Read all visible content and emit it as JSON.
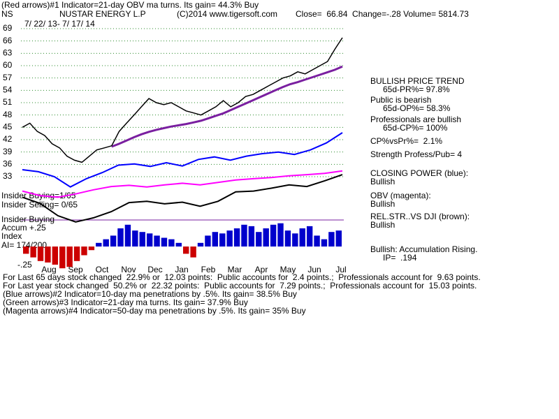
{
  "header": {
    "line1": "(Red arrows)#1 Indicator=21-day OBV ma turns. Its gain= 44.3% Buy",
    "symbol": "NS",
    "company": "NUSTAR ENERGY L.P",
    "copyright": "(C)2014 www.tigersoft.com",
    "quote": "Close=  66.84  Change=-.28 Volume= 5814.73"
  },
  "chart_data": {
    "type": "line",
    "date_range": "7/ 22/ 13- 7/ 17/ 14",
    "ylim": [
      33,
      69
    ],
    "yticks": [
      69,
      66,
      63,
      60,
      57,
      54,
      51,
      48,
      45,
      42,
      39,
      36,
      33
    ],
    "grid": true,
    "months": [
      "Aug",
      "Sep",
      "Oct",
      "Nov",
      "Dec",
      "Jan",
      "Feb",
      "Mar",
      "Apr",
      "May",
      "Jun",
      "Jul"
    ],
    "price": {
      "color": "#000000",
      "values": [
        45,
        46,
        44,
        43,
        41,
        40,
        38,
        37,
        36.5,
        38,
        39.5,
        40,
        40.5,
        44,
        46,
        48,
        50,
        52,
        51,
        50.5,
        51,
        50,
        49,
        48.5,
        48,
        49,
        50,
        51.5,
        50,
        51,
        52.5,
        53,
        54,
        55,
        56,
        57,
        57.5,
        58.5,
        58,
        59,
        60,
        61,
        64,
        66.8
      ]
    },
    "ma50": {
      "color": "#7a1fa0",
      "values": [
        null,
        null,
        null,
        null,
        null,
        null,
        null,
        null,
        null,
        null,
        null,
        null,
        40.3,
        41.0,
        41.8,
        42.6,
        43.3,
        43.9,
        44.4,
        44.8,
        45.2,
        45.5,
        45.8,
        46.2,
        46.6,
        47.2,
        47.8,
        48.4,
        49.2,
        50.0,
        50.8,
        51.6,
        52.4,
        53.2,
        54.0,
        54.8,
        55.5,
        56.0,
        56.6,
        57.2,
        57.8,
        58.4,
        59.0,
        59.8
      ]
    },
    "closing_power": {
      "color": "#0000ff",
      "values": [
        34.7,
        34.2,
        33.0,
        30.5,
        32.5,
        34.0,
        35.8,
        36.1,
        35.5,
        36.4,
        35.6,
        37.2,
        37.8,
        37.0,
        38.0,
        38.6,
        39.0,
        38.4,
        39.5,
        41.2,
        43.7
      ]
    },
    "obv": {
      "color": "#ff00ff",
      "values": [
        29.5,
        28.4,
        28.0,
        28.8,
        29.8,
        30.6,
        30.9,
        30.5,
        31.0,
        31.4,
        31.0,
        31.6,
        32.2,
        32.5,
        32.8,
        33.2,
        33.5,
        33.8,
        34.4
      ]
    },
    "rel_str": {
      "color": "#000000",
      "values": [
        28.0,
        26.5,
        23.5,
        22.0,
        23.0,
        24.5,
        26.7,
        27.0,
        26.4,
        26.8,
        25.8,
        27.0,
        29.3,
        29.5,
        30.2,
        31.0,
        30.6,
        32.0,
        33.5
      ]
    },
    "accum": {
      "up_color": "#0000cc",
      "down_color": "#cc0000",
      "ticks": [
        {
          "value": 0.25,
          "label": "+.25"
        },
        {
          "value": -0.25,
          "label": "-.25"
        }
      ],
      "values": [
        -0.1,
        -0.15,
        -0.2,
        -0.22,
        -0.25,
        -0.3,
        -0.28,
        -0.2,
        -0.12,
        -0.05,
        0.05,
        0.1,
        0.15,
        0.25,
        0.3,
        0.22,
        0.2,
        0.18,
        0.15,
        0.12,
        0.1,
        0.05,
        -0.1,
        -0.15,
        0.05,
        0.15,
        0.2,
        0.18,
        0.22,
        0.25,
        0.3,
        0.28,
        0.2,
        0.25,
        0.3,
        0.32,
        0.22,
        0.18,
        0.25,
        0.28,
        0.15,
        0.1,
        0.2,
        0.22
      ]
    }
  },
  "panel": {
    "trend": "BULLISH PRICE TREND",
    "pr": "65d-PR%= 97.8%",
    "public": "Public is bearish",
    "op": "65d-OP%= 58.3%",
    "pros": "Professionals are bullish",
    "cp": "65d-CP%= 100%",
    "cpvspr": "CP%vsPr%=  2.1%",
    "strength": "Strength Profess/Pub= 4",
    "cp_title": "CLOSING POWER (blue):",
    "cp_state": "Bullish",
    "obv_title": "OBV (magenta):",
    "obv_state": "Bullish",
    "rs_title": "REL.STR..VS DJI (brown):",
    "rs_state": "Bullish",
    "accum_state": "Bullish: Accumulation Rising.",
    "ip": "IP=  .194"
  },
  "left": {
    "ins_buy": "Insider Buying=1/65",
    "ins_sell": "Insider Selling= 0/65",
    "ins_line": "Insider Buying",
    "accum": "Accum",
    "index": "Index",
    "ai": "AI= 174/200"
  },
  "footer": [
    "For Last 65 days stock changed  22.9% or  12.03 points:  Public accounts for  2.4 points.;  Professionals account for  9.63 points.",
    "For Last year stock changed  50.2% or  22.32 points:  Public accounts for  7.29 points.;  Professionals account for  15.03 points.",
    "(Blue arrows)#2 Indicator=10-day ma penetrations by .5%. Its gain= 38.5% Buy",
    "(Green arrows)#3 Indicator=21-day ma turns. Its gain= 37.9% Buy",
    "(Magenta arrows)#4 Indicator=50-day ma penetrations by .5%. Its gain= 35% Buy"
  ]
}
